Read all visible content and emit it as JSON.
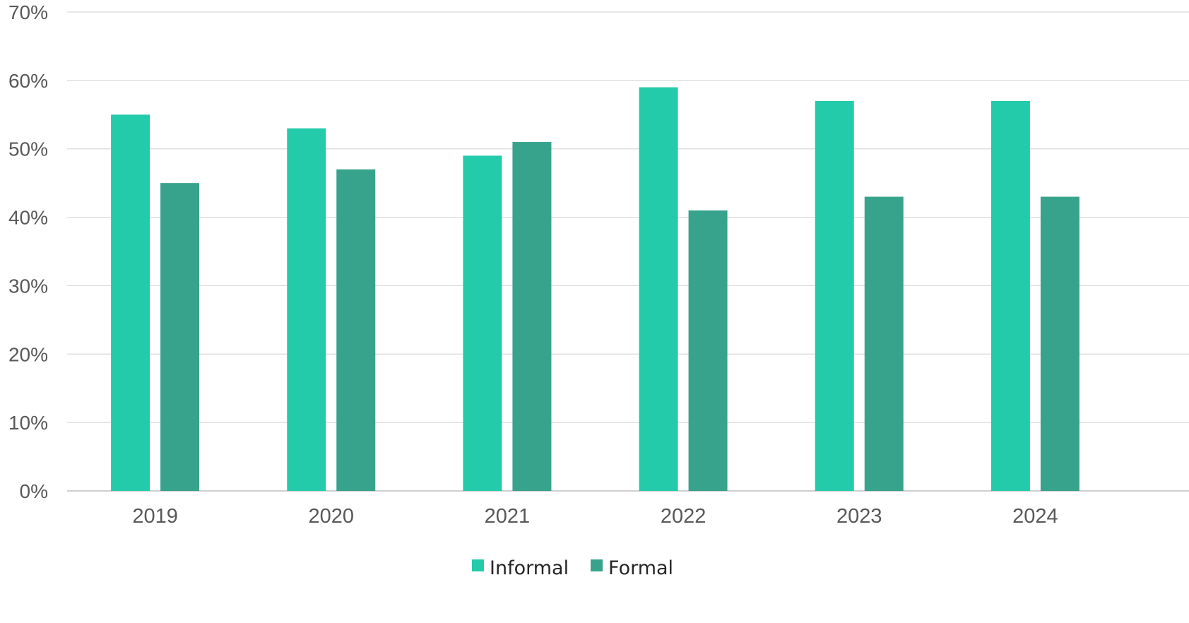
{
  "chart_data": {
    "type": "bar",
    "title": "",
    "xlabel": "",
    "ylabel": "",
    "categories": [
      "2019",
      "2020",
      "2021",
      "2022",
      "2023",
      "2024"
    ],
    "series": [
      {
        "name": "Informal",
        "color": "#24CBAA",
        "values": [
          55,
          53,
          49,
          59,
          57,
          57
        ]
      },
      {
        "name": "Formal",
        "color": "#38A38C",
        "values": [
          45,
          47,
          51,
          41,
          43,
          43
        ]
      }
    ],
    "ylim": [
      0,
      70
    ],
    "y_ticks": [
      "0%",
      "10%",
      "20%",
      "30%",
      "40%",
      "50%",
      "60%",
      "70%"
    ],
    "grid": true,
    "legend_position": "bottom-center"
  }
}
